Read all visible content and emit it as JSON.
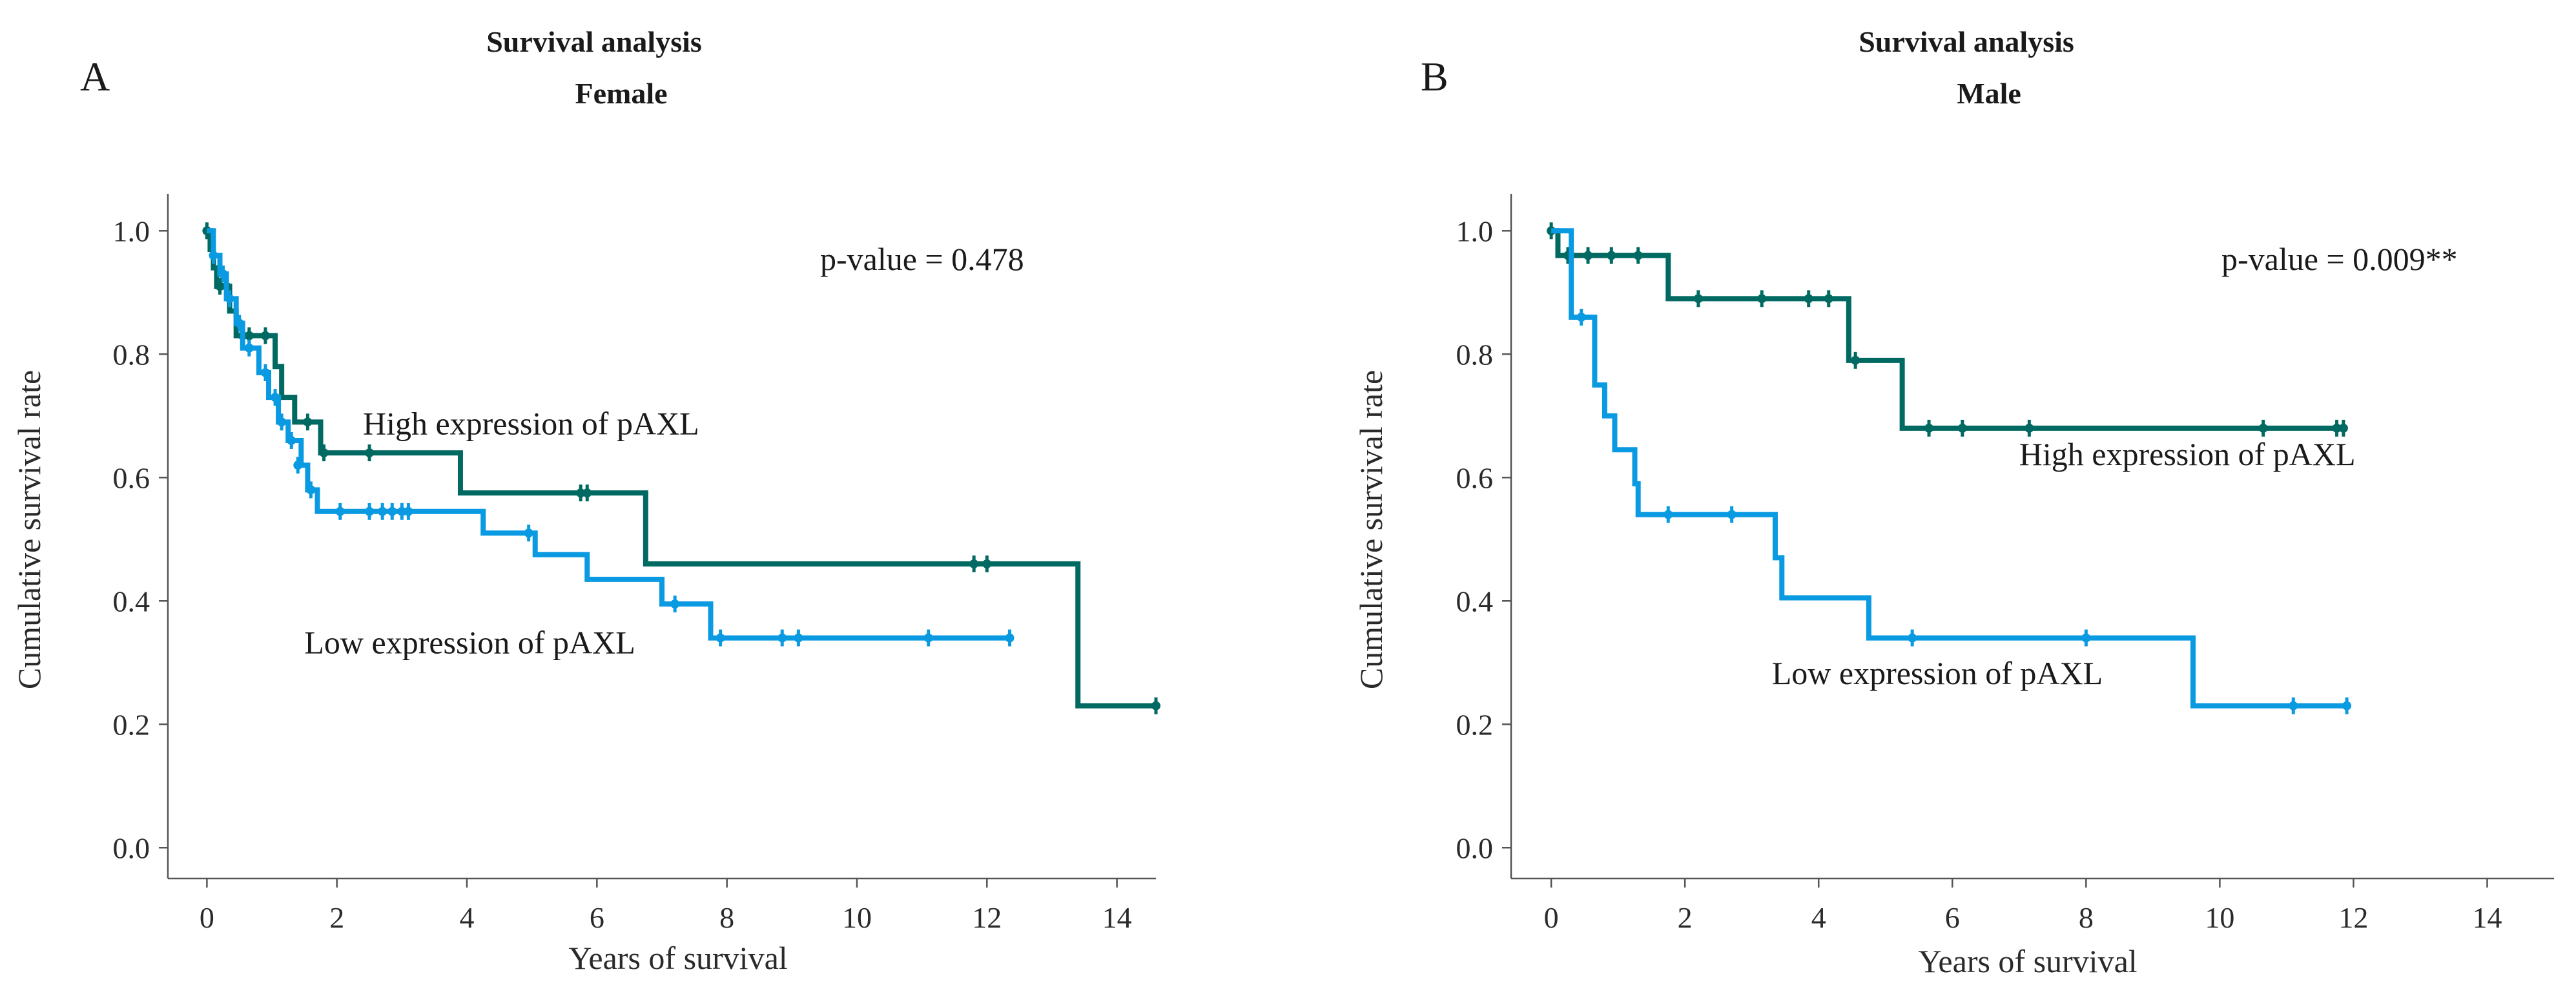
{
  "chart_data": [
    {
      "panel": "A",
      "type": "line",
      "subtype": "kaplan-meier",
      "title": "Survival analysis",
      "subtitle": "Female",
      "xlabel": "Years of survival",
      "ylabel": "Cumulative survival rate",
      "xlim": [
        -0.6,
        14.6
      ],
      "ylim": [
        -0.05,
        1.06
      ],
      "xticks": [
        0,
        2,
        4,
        6,
        8,
        10,
        12,
        14
      ],
      "xtick_labels": [
        "0",
        "2",
        "4",
        "6",
        "8",
        "10",
        "12",
        "14"
      ],
      "yticks": [
        0.0,
        0.2,
        0.4,
        0.6,
        0.8,
        1.0
      ],
      "ytick_labels": [
        "0.0",
        "0.2",
        "0.4",
        "0.6",
        "0.8",
        "1.0"
      ],
      "grid": false,
      "pvalue_label": "p-value = 0.478",
      "series": [
        {
          "name": "High expression of pAXL",
          "color": "#006a62",
          "label_at": [
            2.4,
            0.67
          ],
          "steps": [
            [
              0,
              1.0
            ],
            [
              0.05,
              0.97
            ],
            [
              0.1,
              0.94
            ],
            [
              0.15,
              0.91
            ],
            [
              0.35,
              0.87
            ],
            [
              0.45,
              0.83
            ],
            [
              1.05,
              0.78
            ],
            [
              1.15,
              0.73
            ],
            [
              1.35,
              0.69
            ],
            [
              1.75,
              0.64
            ],
            [
              3.9,
              0.575
            ],
            [
              6.75,
              0.46
            ],
            [
              13.4,
              0.23
            ],
            [
              14.6,
              0.23
            ]
          ],
          "censored": [
            [
              0.0,
              1.0
            ],
            [
              0.2,
              0.91
            ],
            [
              0.3,
              0.91
            ],
            [
              0.55,
              0.83
            ],
            [
              0.65,
              0.83
            ],
            [
              0.9,
              0.83
            ],
            [
              1.55,
              0.69
            ],
            [
              1.8,
              0.64
            ],
            [
              2.5,
              0.64
            ],
            [
              5.75,
              0.575
            ],
            [
              5.85,
              0.575
            ],
            [
              11.8,
              0.46
            ],
            [
              12.0,
              0.46
            ],
            [
              14.6,
              0.23
            ]
          ]
        },
        {
          "name": "Low expression of pAXL",
          "color": "#0a9ae2",
          "label_at": [
            1.5,
            0.315
          ],
          "steps": [
            [
              0,
              1.0
            ],
            [
              0.1,
              0.96
            ],
            [
              0.2,
              0.93
            ],
            [
              0.3,
              0.89
            ],
            [
              0.45,
              0.85
            ],
            [
              0.55,
              0.81
            ],
            [
              0.8,
              0.77
            ],
            [
              0.95,
              0.73
            ],
            [
              1.1,
              0.69
            ],
            [
              1.25,
              0.66
            ],
            [
              1.45,
              0.62
            ],
            [
              1.55,
              0.58
            ],
            [
              1.7,
              0.545
            ],
            [
              4.25,
              0.51
            ],
            [
              5.05,
              0.475
            ],
            [
              5.85,
              0.435
            ],
            [
              7.0,
              0.395
            ],
            [
              7.75,
              0.34
            ],
            [
              12.4,
              0.34
            ]
          ],
          "censored": [
            [
              0.1,
              0.96
            ],
            [
              0.25,
              0.93
            ],
            [
              0.35,
              0.89
            ],
            [
              0.5,
              0.85
            ],
            [
              0.65,
              0.81
            ],
            [
              0.9,
              0.77
            ],
            [
              1.05,
              0.73
            ],
            [
              1.15,
              0.69
            ],
            [
              1.3,
              0.66
            ],
            [
              1.4,
              0.62
            ],
            [
              1.6,
              0.58
            ],
            [
              2.05,
              0.545
            ],
            [
              2.5,
              0.545
            ],
            [
              2.7,
              0.545
            ],
            [
              2.85,
              0.545
            ],
            [
              3.0,
              0.545
            ],
            [
              3.1,
              0.545
            ],
            [
              4.95,
              0.51
            ],
            [
              7.2,
              0.395
            ],
            [
              7.9,
              0.34
            ],
            [
              8.85,
              0.34
            ],
            [
              9.1,
              0.34
            ],
            [
              11.1,
              0.34
            ],
            [
              12.35,
              0.34
            ]
          ]
        }
      ]
    },
    {
      "panel": "B",
      "type": "line",
      "subtype": "kaplan-meier",
      "title": "Survival analysis",
      "subtitle": "Male",
      "xlabel": "Years of survival",
      "ylabel": "Cumulative survival rate",
      "xlim": [
        -0.6,
        15.0
      ],
      "ylim": [
        -0.05,
        1.06
      ],
      "xticks": [
        0,
        2,
        4,
        6,
        8,
        10,
        12,
        14
      ],
      "xtick_labels": [
        "0",
        "2",
        "4",
        "6",
        "8",
        "10",
        "12",
        "14"
      ],
      "yticks": [
        0.0,
        0.2,
        0.4,
        0.6,
        0.8,
        1.0
      ],
      "ytick_labels": [
        "0.0",
        "0.2",
        "0.4",
        "0.6",
        "0.8",
        "1.0"
      ],
      "grid": false,
      "pvalue_label": "p-value = 0.009**",
      "series": [
        {
          "name": "High expression of pAXL",
          "color": "#006a62",
          "label_at": [
            7.0,
            0.62
          ],
          "steps": [
            [
              0,
              1.0
            ],
            [
              0.1,
              0.96
            ],
            [
              1.75,
              0.89
            ],
            [
              4.45,
              0.79
            ],
            [
              5.25,
              0.68
            ],
            [
              11.85,
              0.68
            ]
          ],
          "censored": [
            [
              0.0,
              1.0
            ],
            [
              0.25,
              0.96
            ],
            [
              0.55,
              0.96
            ],
            [
              0.9,
              0.96
            ],
            [
              1.3,
              0.96
            ],
            [
              2.2,
              0.89
            ],
            [
              3.15,
              0.89
            ],
            [
              3.85,
              0.89
            ],
            [
              4.15,
              0.89
            ],
            [
              4.55,
              0.79
            ],
            [
              5.65,
              0.68
            ],
            [
              6.15,
              0.68
            ],
            [
              7.15,
              0.68
            ],
            [
              10.65,
              0.68
            ],
            [
              11.75,
              0.68
            ],
            [
              11.85,
              0.68
            ]
          ]
        },
        {
          "name": "Low expression of pAXL",
          "color": "#0a9ae2",
          "label_at": [
            3.3,
            0.265
          ],
          "steps": [
            [
              0,
              1.0
            ],
            [
              0.3,
              0.86
            ],
            [
              0.65,
              0.75
            ],
            [
              0.8,
              0.7
            ],
            [
              0.95,
              0.645
            ],
            [
              1.25,
              0.59
            ],
            [
              1.3,
              0.54
            ],
            [
              3.35,
              0.47
            ],
            [
              3.45,
              0.405
            ],
            [
              4.75,
              0.34
            ],
            [
              9.6,
              0.23
            ],
            [
              11.9,
              0.23
            ]
          ],
          "censored": [
            [
              0.45,
              0.86
            ],
            [
              1.75,
              0.54
            ],
            [
              2.7,
              0.54
            ],
            [
              5.4,
              0.34
            ],
            [
              8.0,
              0.34
            ],
            [
              11.1,
              0.23
            ],
            [
              11.9,
              0.23
            ]
          ]
        }
      ]
    }
  ]
}
